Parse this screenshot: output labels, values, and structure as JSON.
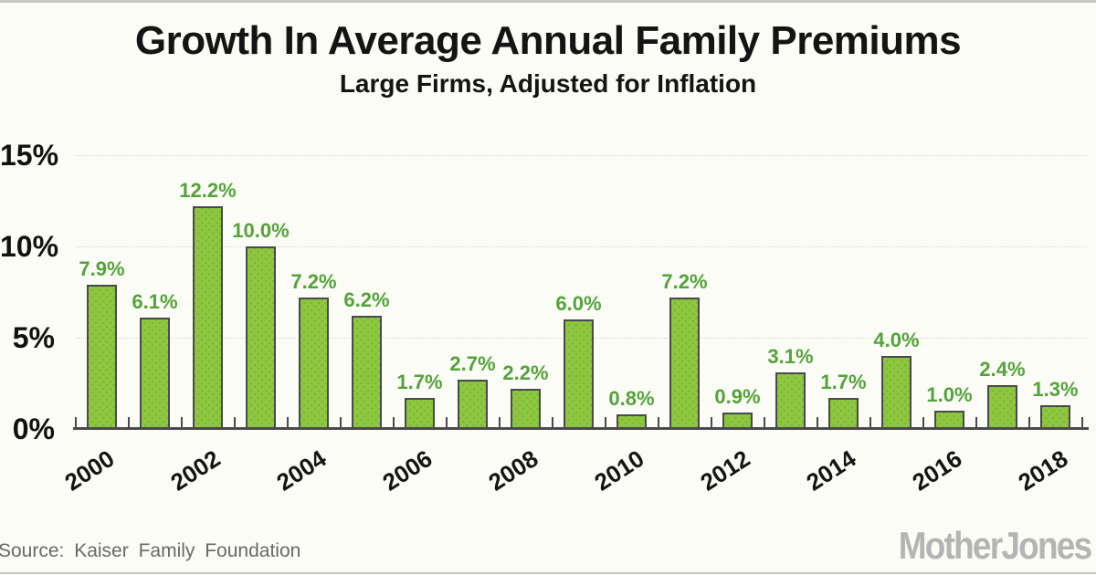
{
  "page": {
    "title": "Growth In Average Annual Family Premiums",
    "subtitle": "Large Firms, Adjusted for Inflation",
    "source_label": "Source: Kaiser Family Foundation",
    "logo_text": "MotherJones"
  },
  "chart_data": {
    "type": "bar",
    "title": "Growth In Average Annual Family Premiums",
    "subtitle": "Large Firms, Adjusted for Inflation",
    "categories": [
      "2000",
      "2001",
      "2002",
      "2003",
      "2004",
      "2005",
      "2006",
      "2007",
      "2008",
      "2009",
      "2010",
      "2011",
      "2012",
      "2013",
      "2014",
      "2015",
      "2016",
      "2017",
      "2018"
    ],
    "values": [
      7.9,
      6.1,
      12.2,
      10.0,
      7.2,
      6.2,
      1.7,
      2.7,
      2.2,
      6.0,
      0.8,
      7.2,
      0.9,
      3.1,
      1.7,
      4.0,
      1.0,
      2.4,
      1.3
    ],
    "value_labels": [
      "7.9%",
      "6.1%",
      "12.2%",
      "10.0%",
      "7.2%",
      "6.2%",
      "1.7%",
      "2.7%",
      "2.2%",
      "6.0%",
      "0.8%",
      "7.2%",
      "0.9%",
      "3.1%",
      "1.7%",
      "4.0%",
      "1.0%",
      "2.4%",
      "1.3%"
    ],
    "x_tick_labels": [
      "2000",
      "2002",
      "2004",
      "2006",
      "2008",
      "2010",
      "2012",
      "2014",
      "2016",
      "2018"
    ],
    "y_ticks": [
      {
        "label": "0%",
        "value": 0
      },
      {
        "label": "5%",
        "value": 5
      },
      {
        "label": "10%",
        "value": 10
      },
      {
        "label": "15%",
        "value": 15
      }
    ],
    "ylim": [
      0,
      15
    ],
    "xlabel": "",
    "ylabel": "",
    "grid": "horizontal-dotted",
    "legend": "none",
    "colors": {
      "background": "#fbfcf6",
      "bar_fill": "#8dc63f",
      "bar_border": "#4a4a4c",
      "value_label": "#53a339",
      "axis": "#4a4a4c",
      "gridline": "#d8d8d0",
      "title_text": "#141414",
      "source_text": "#696969",
      "logo": "#b4b4b4"
    }
  }
}
